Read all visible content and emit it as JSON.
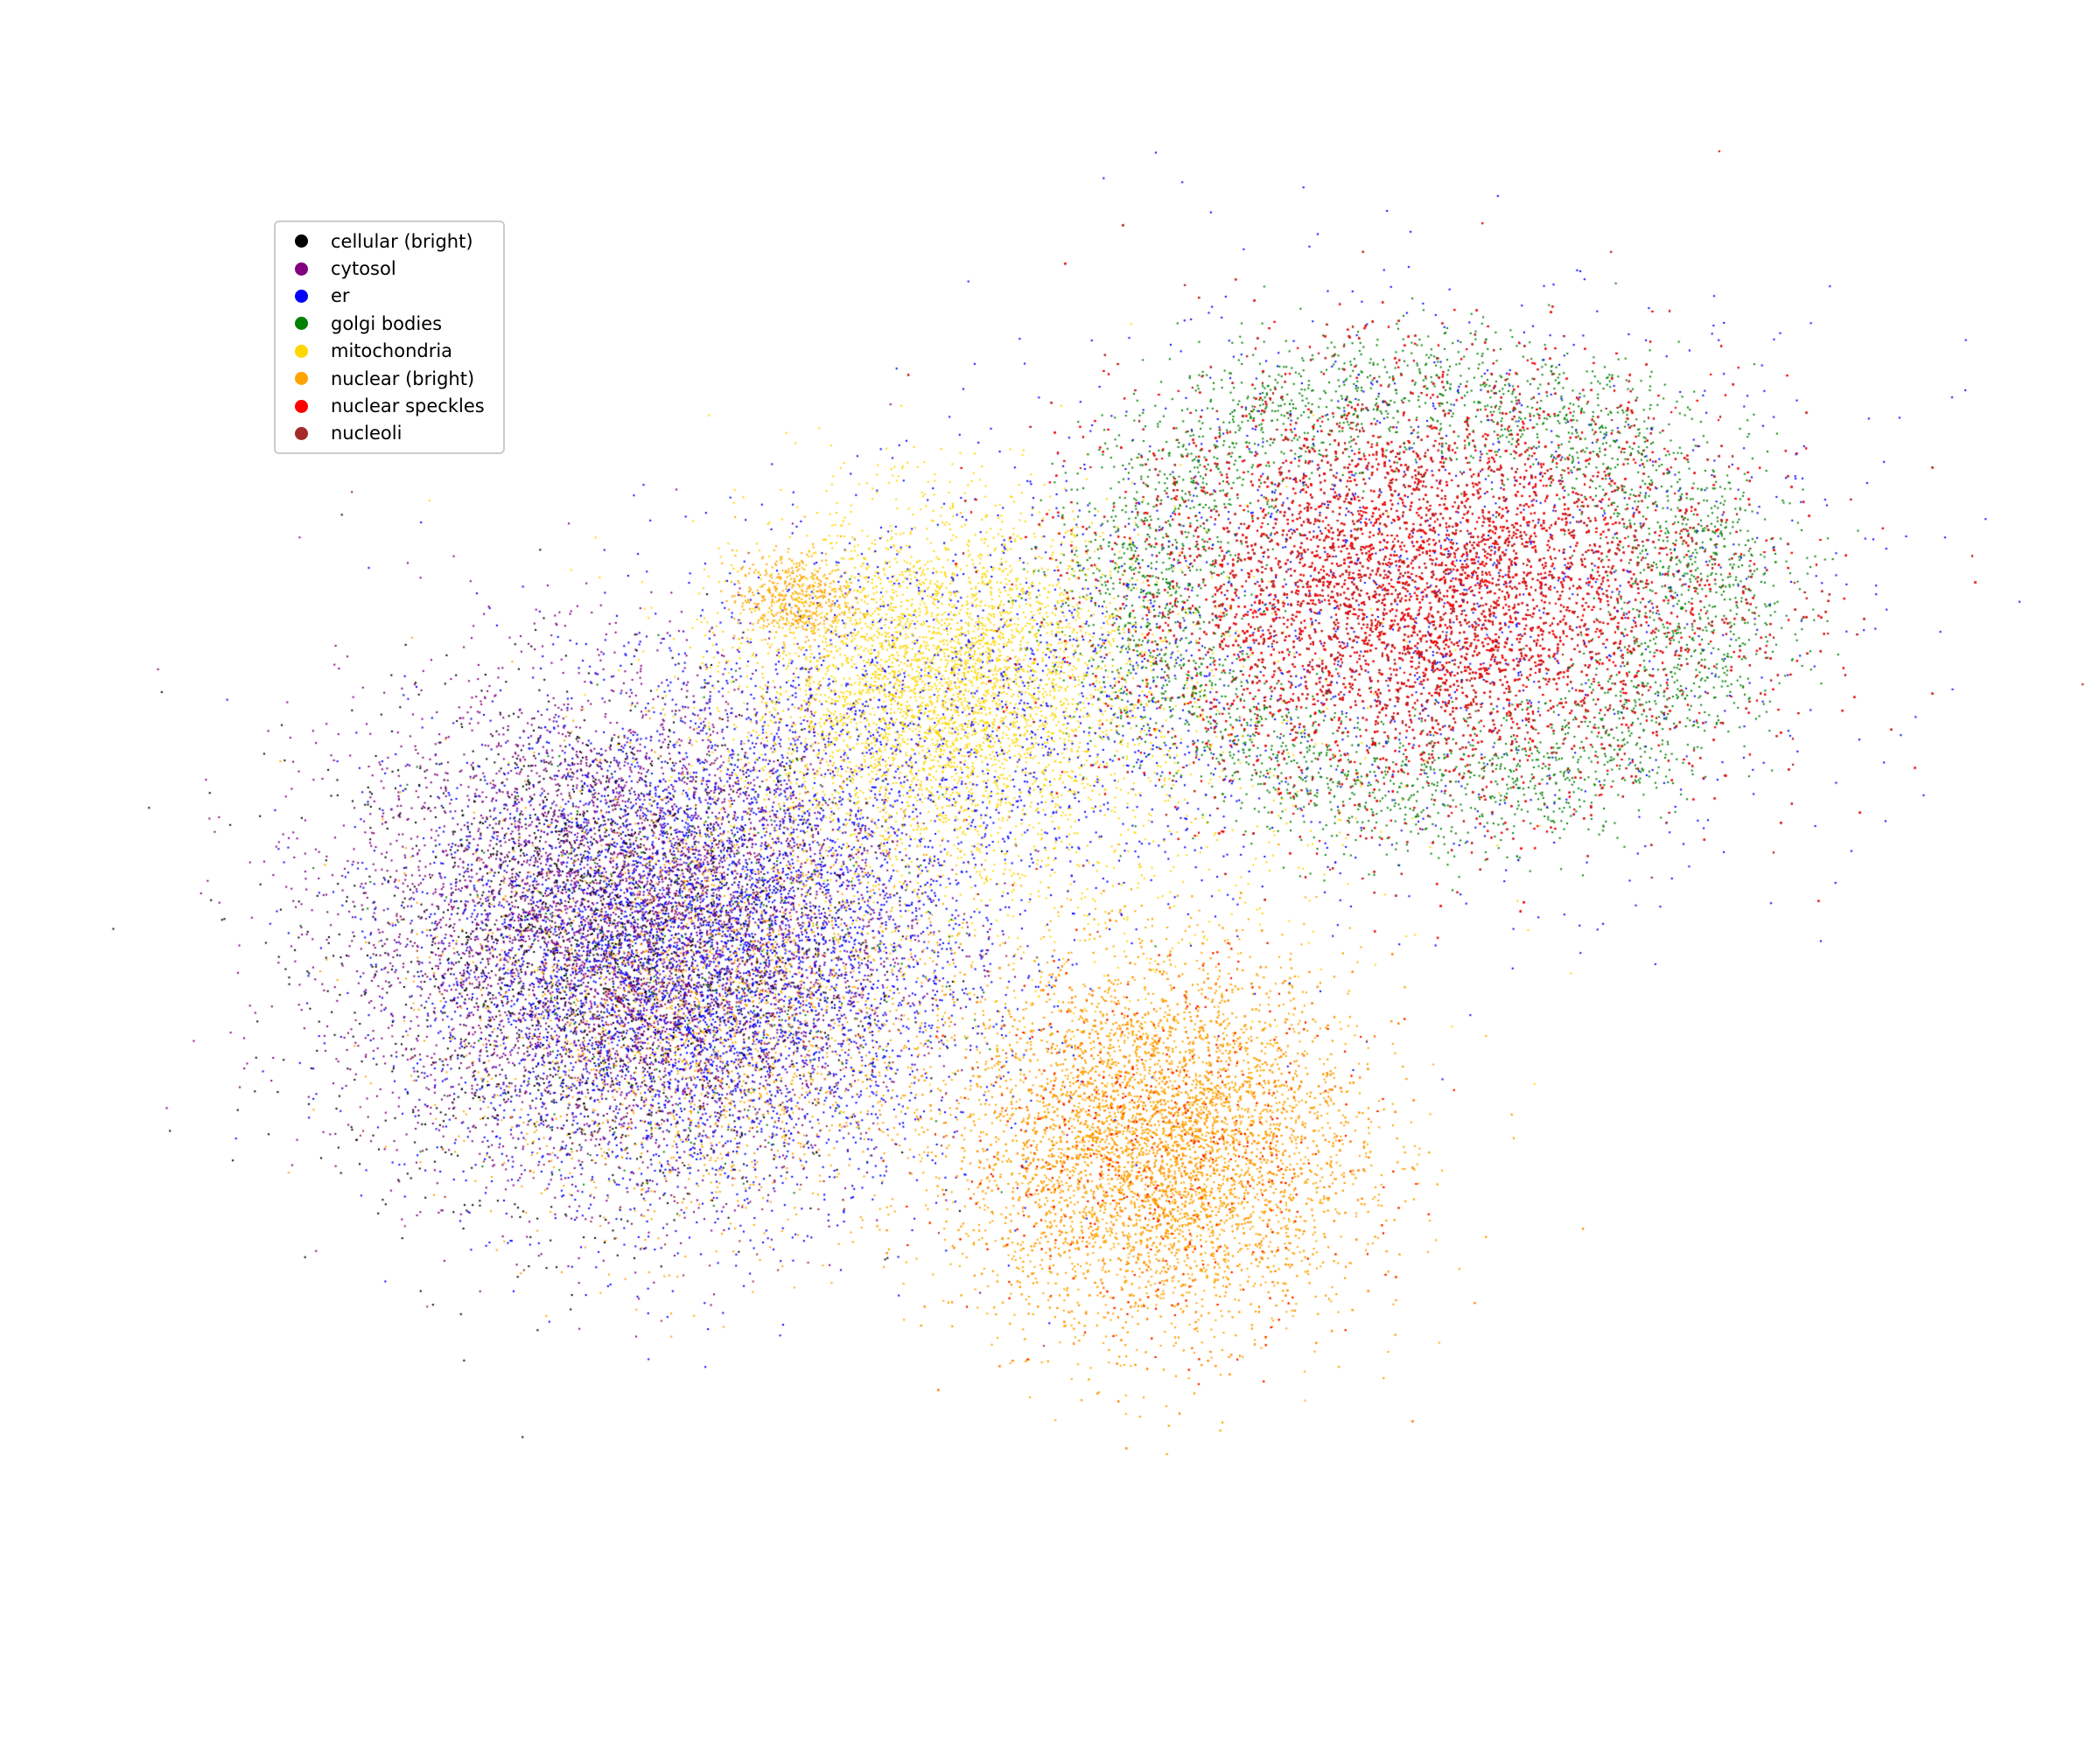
{
  "chart_data": {
    "type": "scatter",
    "title": "",
    "xlabel": "",
    "ylabel": "",
    "axes_visible": false,
    "grid": false,
    "legend_position": "upper-left",
    "series": [
      {
        "name": "cellular (bright)",
        "color": "#000000",
        "clusters": [
          {
            "cx": -5.6,
            "cy": 0.3,
            "sx": 1.3,
            "sy": 1.6,
            "n": 2200
          }
        ]
      },
      {
        "name": "cytosol",
        "color": "#800080",
        "clusters": [
          {
            "cx": -5.3,
            "cy": 0.6,
            "sx": 1.4,
            "sy": 1.6,
            "n": 5200
          }
        ]
      },
      {
        "name": "er",
        "color": "#0000ff",
        "clusters": [
          {
            "cx": -4.6,
            "cy": 0.2,
            "sx": 1.4,
            "sy": 1.6,
            "n": 5200
          },
          {
            "cx": -1.9,
            "cy": 3.3,
            "sx": 1.6,
            "sy": 1.4,
            "n": 1400
          },
          {
            "cx": 2.8,
            "cy": 5.0,
            "sx": 2.2,
            "sy": 1.9,
            "n": 1200
          }
        ]
      },
      {
        "name": "golgi bodies",
        "color": "#008000",
        "ring": {
          "cx": 2.8,
          "cy": 5.0,
          "r": 3.05,
          "width": 0.55,
          "n": 3600
        },
        "clusters": [
          {
            "cx": -4.6,
            "cy": 0.2,
            "sx": 1.3,
            "sy": 1.5,
            "n": 350
          }
        ]
      },
      {
        "name": "mitochondria",
        "color": "#ffd700",
        "clusters": [
          {
            "cx": -2.1,
            "cy": 3.8,
            "sx": 1.0,
            "sy": 1.1,
            "n": 3800
          },
          {
            "cx": -1.2,
            "cy": 2.4,
            "sx": 1.8,
            "sy": 1.8,
            "n": 900
          }
        ]
      },
      {
        "name": "nuclear (bright)",
        "color": "#ffa500",
        "clusters": [
          {
            "cx": 0.1,
            "cy": -2.3,
            "sx": 1.0,
            "sy": 1.2,
            "n": 8200
          },
          {
            "cx": -4.4,
            "cy": -0.4,
            "sx": 1.3,
            "sy": 1.5,
            "n": 2200
          },
          {
            "cx": -3.6,
            "cy": 4.9,
            "sx": 0.3,
            "sy": 0.3,
            "n": 500
          }
        ]
      },
      {
        "name": "nuclear speckles",
        "color": "#ff0000",
        "clusters": [
          {
            "cx": 2.8,
            "cy": 5.0,
            "sx": 1.55,
            "sy": 1.35,
            "n": 11000
          },
          {
            "cx": 0.1,
            "cy": -2.3,
            "sx": 1.0,
            "sy": 1.2,
            "n": 1400
          }
        ]
      },
      {
        "name": "nucleoli",
        "color": "#a52a2a",
        "clusters": [
          {
            "cx": 2.8,
            "cy": 5.0,
            "sx": 1.55,
            "sy": 1.35,
            "n": 9000
          },
          {
            "cx": -4.4,
            "cy": -0.4,
            "sx": 1.3,
            "sy": 1.5,
            "n": 500
          }
        ]
      }
    ],
    "xlim": [
      -9.5,
      7.5
    ],
    "ylim": [
      -7.5,
      10.0
    ]
  }
}
